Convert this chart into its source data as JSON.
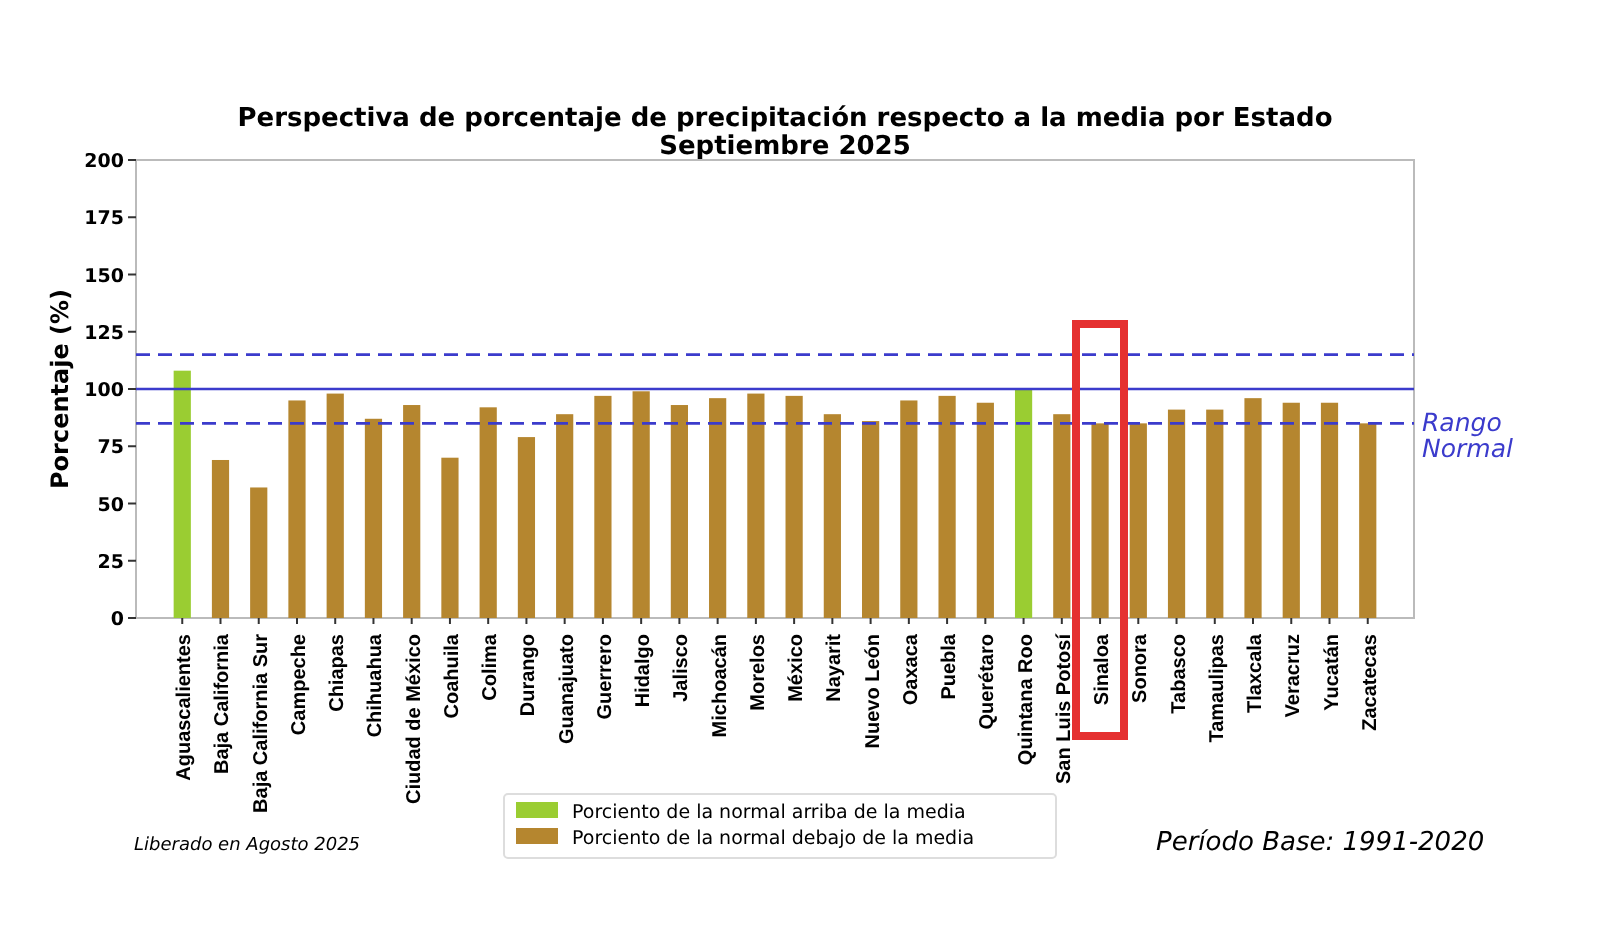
{
  "chart_data": {
    "type": "bar",
    "title": "Perspectiva de porcentaje de precipitación respecto a la media por Estado",
    "subtitle": "Septiembre 2025",
    "ylabel": "Porcentaje (%)",
    "categories": [
      "Aguascalientes",
      "Baja California",
      "Baja California Sur",
      "Campeche",
      "Chiapas",
      "Chihuahua",
      "Ciudad de México",
      "Coahuila",
      "Colima",
      "Durango",
      "Guanajuato",
      "Guerrero",
      "Hidalgo",
      "Jalisco",
      "Michoacán",
      "Morelos",
      "México",
      "Nayarit",
      "Nuevo León",
      "Oaxaca",
      "Puebla",
      "Querétaro",
      "Quintana Roo",
      "San Luis Potosí",
      "Sinaloa",
      "Sonora",
      "Tabasco",
      "Tamaulipas",
      "Tlaxcala",
      "Veracruz",
      "Yucatán",
      "Zacatecas"
    ],
    "series": [
      {
        "name": "Porciento de la normal arriba de la media",
        "color": "#9acd32",
        "values": [
          108,
          null,
          null,
          null,
          null,
          null,
          null,
          null,
          null,
          null,
          null,
          null,
          null,
          null,
          null,
          null,
          null,
          null,
          null,
          null,
          null,
          null,
          100,
          null,
          null,
          null,
          null,
          null,
          null,
          null,
          null,
          null
        ]
      },
      {
        "name": "Porciento de la normal debajo de la media",
        "color": "#b5862f",
        "values": [
          null,
          69,
          57,
          95,
          98,
          87,
          93,
          70,
          92,
          79,
          89,
          97,
          99,
          93,
          96,
          98,
          97,
          89,
          86,
          95,
          97,
          94,
          null,
          89,
          85,
          85,
          91,
          91,
          96,
          94,
          94,
          85
        ]
      }
    ],
    "ylim": [
      0,
      200
    ],
    "yticks": [
      0,
      25,
      50,
      75,
      100,
      125,
      150,
      175,
      200
    ],
    "grid": false,
    "legend": "bottom",
    "ref_lines": [
      {
        "axis": "y",
        "value": 100,
        "color": "#3b3bcc",
        "line_style": "solid"
      },
      {
        "axis": "y",
        "value": 115,
        "color": "#3b3bcc",
        "line_style": "dashed"
      },
      {
        "axis": "y",
        "value": 85,
        "color": "#3b3bcc",
        "line_style": "dashed",
        "label": "Rango Normal"
      }
    ],
    "annotations": [
      "Liberado en Agosto 2025",
      "Período Base: 1991-2020"
    ]
  }
}
